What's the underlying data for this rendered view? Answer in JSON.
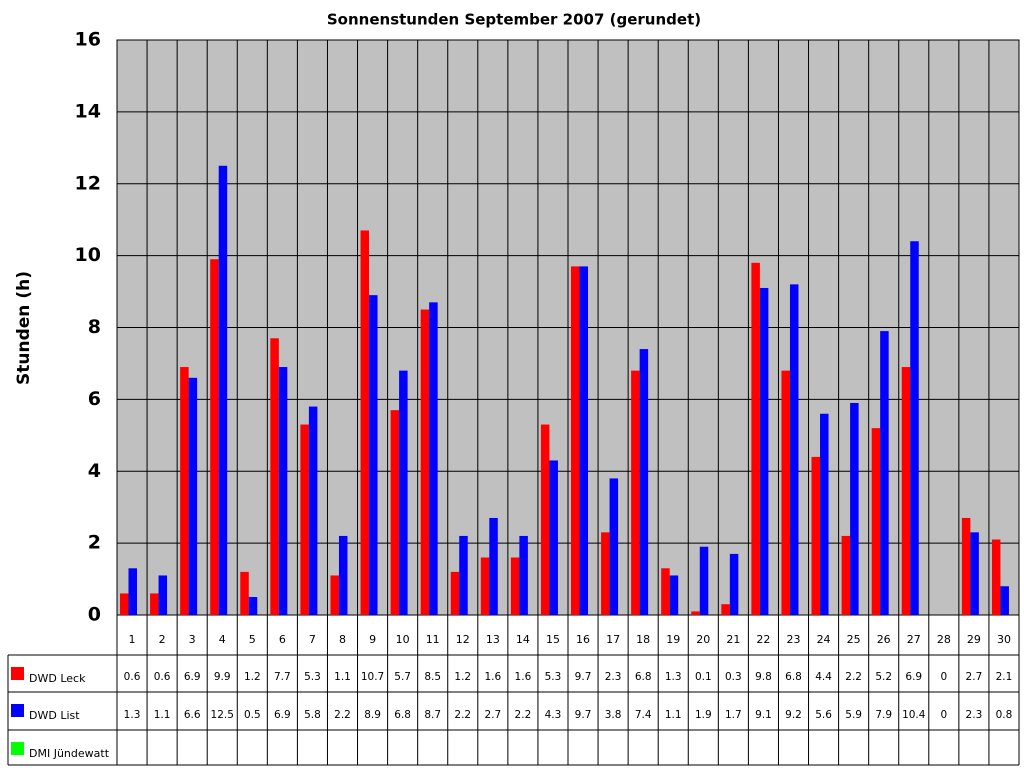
{
  "chart_data": {
    "type": "bar",
    "title": "Sonnenstunden September 2007 (gerundet)",
    "y_label": "Stunden (h)",
    "categories": [
      "1",
      "2",
      "3",
      "4",
      "5",
      "6",
      "7",
      "8",
      "9",
      "10",
      "11",
      "12",
      "13",
      "14",
      "15",
      "16",
      "17",
      "18",
      "19",
      "20",
      "21",
      "22",
      "23",
      "24",
      "25",
      "26",
      "27",
      "28",
      "29",
      "30"
    ],
    "series": [
      {
        "name": "DWD Leck",
        "color": "#ff0000",
        "values": [
          0.6,
          0.6,
          6.9,
          9.9,
          1.2,
          7.7,
          5.3,
          1.1,
          10.7,
          5.7,
          8.5,
          1.2,
          1.6,
          1.6,
          5.3,
          9.7,
          2.3,
          6.8,
          1.3,
          0.1,
          0.3,
          9.8,
          6.8,
          4.4,
          2.2,
          5.2,
          6.9,
          0,
          2.7,
          2.1
        ]
      },
      {
        "name": "DWD List",
        "color": "#0000ff",
        "values": [
          1.3,
          1.1,
          6.6,
          12.5,
          0.5,
          6.9,
          5.8,
          2.2,
          8.9,
          6.8,
          8.7,
          2.2,
          2.7,
          2.2,
          4.3,
          9.7,
          3.8,
          7.4,
          1.1,
          1.9,
          1.7,
          9.1,
          9.2,
          5.6,
          5.9,
          7.9,
          10.4,
          0,
          2.3,
          0.8
        ]
      },
      {
        "name": "DMI Jündewatt",
        "color": "#00ff00",
        "values": [
          null,
          null,
          null,
          null,
          null,
          null,
          null,
          null,
          null,
          null,
          null,
          null,
          null,
          null,
          null,
          null,
          null,
          null,
          null,
          null,
          null,
          null,
          null,
          null,
          null,
          null,
          null,
          null,
          null,
          null
        ]
      }
    ],
    "ylim": [
      0,
      16
    ],
    "yticks": [
      0,
      2,
      4,
      6,
      8,
      10,
      12,
      14,
      16
    ],
    "grid": true,
    "data_table": true
  }
}
